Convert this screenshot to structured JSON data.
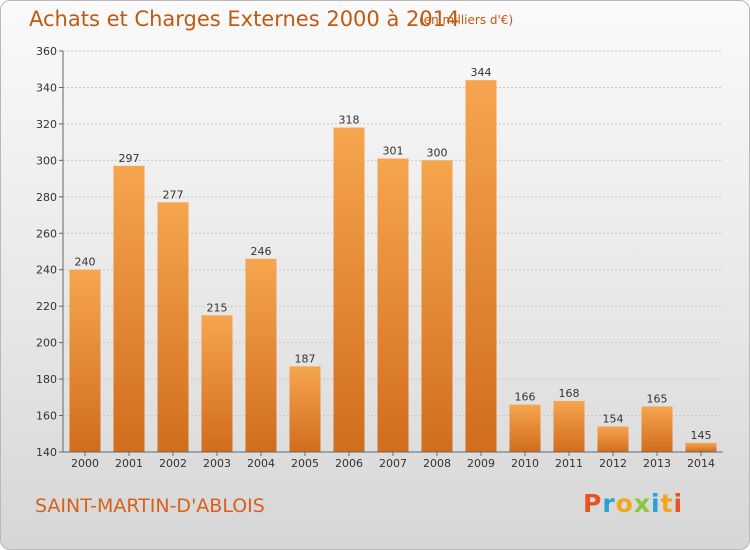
{
  "header": {
    "title": "Achats et Charges Externes 2000 à 2014",
    "subtitle": "(en milliers d'€)"
  },
  "footer": {
    "city": "SAINT-MARTIN-D'ABLOIS",
    "logo": "Proxiti"
  },
  "colors": {
    "bar_top": "#f6a54f",
    "bar_bottom": "#d16d1c",
    "title": "#c05a12",
    "logo_letters": [
      "#e8531f",
      "#2aa0d9",
      "#f2a51d",
      "#8cc63f",
      "#2aa0d9",
      "#f2a51d",
      "#e8531f"
    ]
  },
  "chart_data": {
    "type": "bar",
    "title": "Achats et Charges Externes 2000 à 2014",
    "categories": [
      "2000",
      "2001",
      "2002",
      "2003",
      "2004",
      "2005",
      "2006",
      "2007",
      "2008",
      "2009",
      "2010",
      "2011",
      "2012",
      "2013",
      "2014"
    ],
    "values": [
      240,
      297,
      277,
      215,
      246,
      187,
      318,
      301,
      300,
      344,
      166,
      168,
      154,
      165,
      145
    ],
    "ylim": [
      140,
      360
    ],
    "yticks": [
      140,
      160,
      180,
      200,
      220,
      240,
      260,
      280,
      300,
      320,
      340,
      360
    ],
    "grid": true
  }
}
